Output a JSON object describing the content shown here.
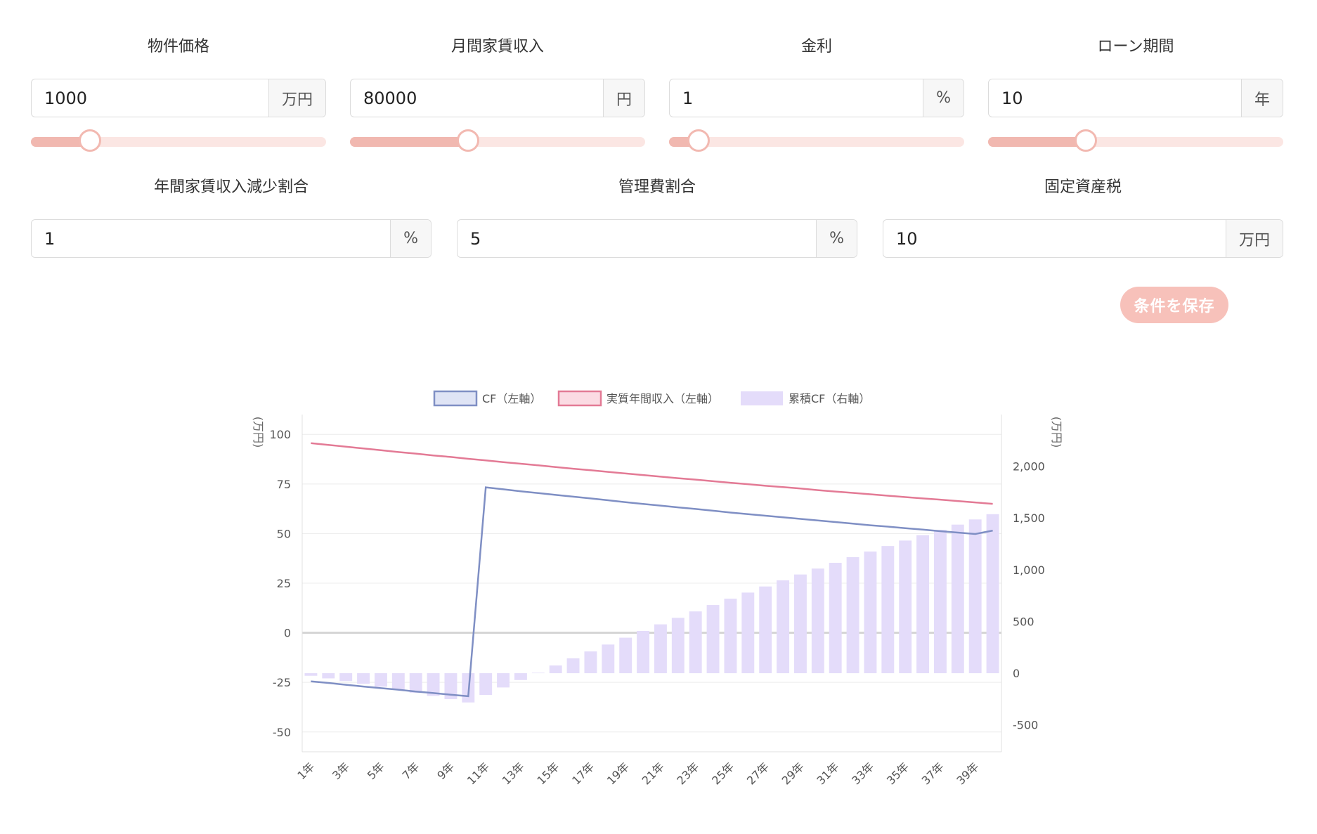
{
  "inputs": {
    "price": {
      "label": "物件価格",
      "value": "1000",
      "unit": "万円",
      "slider_fraction": 0.2
    },
    "rent": {
      "label": "月間家賃収入",
      "value": "80000",
      "unit": "円",
      "slider_fraction": 0.4
    },
    "rate": {
      "label": "金利",
      "value": "1",
      "unit": "%",
      "slider_fraction": 0.1
    },
    "term": {
      "label": "ローン期間",
      "value": "10",
      "unit": "年",
      "slider_fraction": 0.33
    },
    "decline": {
      "label": "年間家賃収入減少割合",
      "value": "1",
      "unit": "%"
    },
    "mgmt": {
      "label": "管理費割合",
      "value": "5",
      "unit": "%"
    },
    "tax": {
      "label": "固定資産税",
      "value": "10",
      "unit": "万円"
    }
  },
  "save_button": "条件を保存",
  "colors": {
    "accent": "#f7c1ba",
    "slider_fill": "#f1b8b0",
    "slider_track": "#fbe6e3",
    "cf": "#7f8fc4",
    "income": "#e37a95",
    "cumulative": "#e4dcfa"
  },
  "chart_data": {
    "type": "line",
    "legend": [
      "CF（左軸）",
      "実質年間収入（左軸）",
      "累積CF（右軸）"
    ],
    "legend_position": "top",
    "y_left_label": "(万円)",
    "y_right_label": "(万円)",
    "y_left_range": [
      -60,
      110
    ],
    "y_left_ticks": [
      100,
      75,
      50,
      25,
      0,
      -25,
      -50
    ],
    "y_right_range": [
      -760,
      2500
    ],
    "y_right_ticks": [
      2000,
      1500,
      1000,
      500,
      0,
      -500
    ],
    "y_right_tick_labels": [
      "2,000",
      "1,500",
      "1,000",
      "500",
      "0",
      "-500"
    ],
    "x_labels_shown": [
      "1年",
      "3年",
      "5年",
      "7年",
      "9年",
      "11年",
      "13年",
      "15年",
      "17年",
      "19年",
      "21年",
      "23年",
      "25年",
      "27年",
      "29年",
      "31年",
      "33年",
      "35年",
      "37年",
      "39年"
    ],
    "x_count": 40,
    "grid": true,
    "series": [
      {
        "name": "CF（左軸）",
        "axis": "left",
        "kind": "line",
        "values": [
          -24.5,
          -25.3,
          -26.2,
          -27.1,
          -27.9,
          -28.7,
          -29.6,
          -30.4,
          -31.2,
          -32.0,
          73.3,
          72.3,
          71.3,
          70.4,
          69.5,
          68.6,
          67.7,
          66.8,
          65.8,
          64.9,
          64.1,
          63.2,
          62.4,
          61.5,
          60.6,
          59.8,
          59.0,
          58.2,
          57.4,
          56.6,
          55.8,
          55.0,
          54.2,
          53.5,
          52.7,
          52.0,
          51.2,
          50.5,
          49.8,
          51.5
        ]
      },
      {
        "name": "実質年間収入（左軸）",
        "axis": "left",
        "kind": "line",
        "values": [
          95.6,
          94.7,
          93.8,
          92.9,
          92.0,
          91.1,
          90.3,
          89.4,
          88.6,
          87.7,
          86.9,
          86.0,
          85.2,
          84.4,
          83.5,
          82.7,
          81.9,
          81.1,
          80.3,
          79.5,
          78.7,
          77.9,
          77.2,
          76.4,
          75.6,
          74.9,
          74.1,
          73.4,
          72.7,
          71.9,
          71.2,
          70.5,
          69.8,
          69.1,
          68.4,
          67.7,
          67.1,
          66.4,
          65.7,
          65.0
        ]
      },
      {
        "name": "累積CF（右軸）",
        "axis": "right",
        "kind": "bar",
        "values": [
          -25,
          -50,
          -76,
          -103,
          -131,
          -160,
          -189,
          -220,
          -251,
          -283,
          -210,
          -138,
          -66,
          4,
          74,
          143,
          210,
          277,
          343,
          408,
          472,
          535,
          597,
          659,
          720,
          779,
          838,
          897,
          954,
          1011,
          1067,
          1122,
          1176,
          1229,
          1282,
          1334,
          1385,
          1436,
          1486,
          1537
        ]
      }
    ]
  }
}
